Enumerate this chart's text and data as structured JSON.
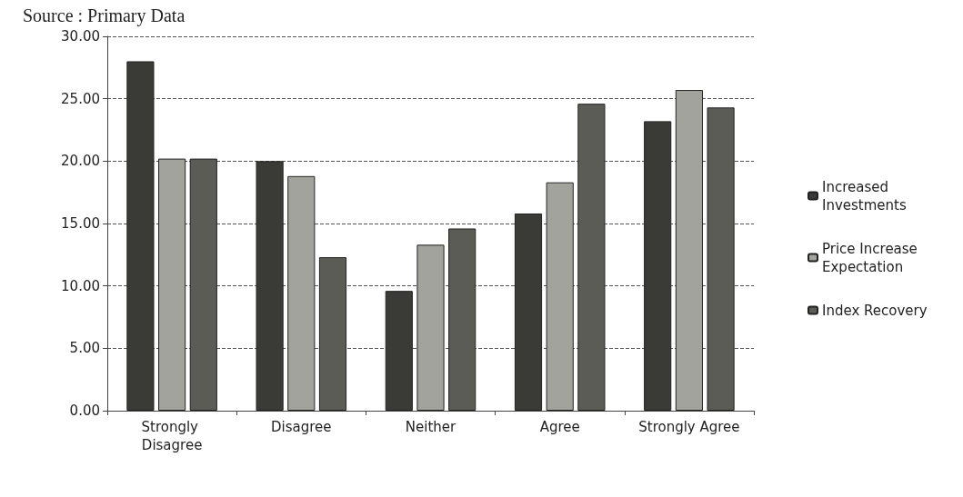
{
  "chart_data": {
    "type": "bar",
    "annotations": [
      "Source : Primary Data"
    ],
    "categories": [
      "Strongly Disagree",
      "Disagree",
      "Neither",
      "Agree",
      "Strongly Agree"
    ],
    "series": [
      {
        "name": "Increased Investments",
        "color": "#3a3a36",
        "values": [
          28.0,
          20.0,
          9.6,
          15.8,
          23.2
        ]
      },
      {
        "name": "Price Increase Expectation",
        "color": "#a3a39d",
        "values": [
          20.2,
          18.8,
          13.3,
          18.3,
          25.7
        ]
      },
      {
        "name": "Index Recovery",
        "color": "#5c5c57",
        "values": [
          20.2,
          12.3,
          14.6,
          24.6,
          24.3
        ]
      }
    ],
    "ylim": [
      0,
      30
    ],
    "yticks": [
      {
        "value": 0,
        "label": "0.00"
      },
      {
        "value": 5,
        "label": "5.00"
      },
      {
        "value": 10,
        "label": "10.00"
      },
      {
        "value": 15,
        "label": "15.00"
      },
      {
        "value": 20,
        "label": "20.00"
      },
      {
        "value": 25,
        "label": "25.00"
      },
      {
        "value": 30,
        "label": "30.00"
      }
    ],
    "grid": "y",
    "legend": "right"
  }
}
